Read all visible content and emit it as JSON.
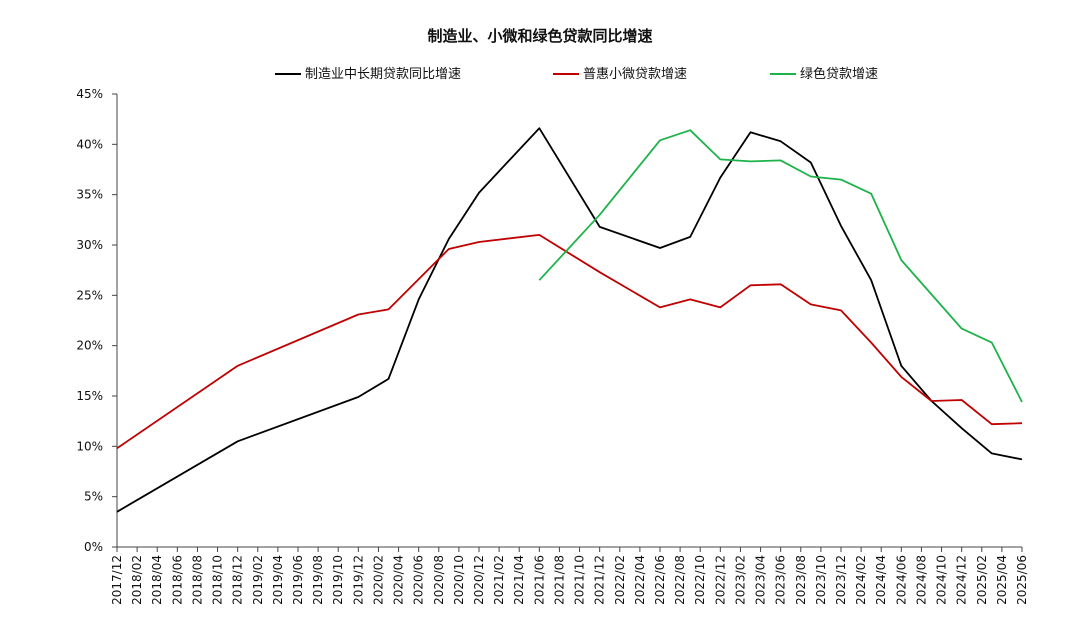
{
  "chart_data": {
    "type": "line",
    "title": "制造业、小微和绿色贷款同比增速",
    "xlabel": "",
    "ylabel": "",
    "ylim": [
      0,
      45
    ],
    "yticks": [
      0,
      5,
      10,
      15,
      20,
      25,
      30,
      35,
      40,
      45
    ],
    "ytick_labels": [
      "0%",
      "5%",
      "10%",
      "15%",
      "20%",
      "25%",
      "30%",
      "35%",
      "40%",
      "45%"
    ],
    "legend_position": "top",
    "grid": false,
    "categories": [
      "2017/12",
      "2018/02",
      "2018/04",
      "2018/06",
      "2018/08",
      "2018/10",
      "2018/12",
      "2019/02",
      "2019/04",
      "2019/06",
      "2019/08",
      "2019/10",
      "2019/12",
      "2020/02",
      "2020/04",
      "2020/06",
      "2020/08",
      "2020/10",
      "2020/12",
      "2021/02",
      "2021/04",
      "2021/06",
      "2021/08",
      "2021/10",
      "2021/12",
      "2022/02",
      "2022/04",
      "2022/06",
      "2022/08",
      "2022/10",
      "2022/12",
      "2023/02",
      "2023/04",
      "2023/06",
      "2023/08",
      "2023/10",
      "2023/12",
      "2024/02",
      "2024/04",
      "2024/06",
      "2024/08",
      "2024/10",
      "2024/12",
      "2025/02",
      "2025/04",
      "2025/06"
    ],
    "series": [
      {
        "name": "制造业中长期贷款同比增速",
        "color": "#000000",
        "points": [
          [
            "2017/12",
            3.5
          ],
          [
            "2018/12",
            10.5
          ],
          [
            "2019/12",
            14.9
          ],
          [
            "2020/03",
            16.7
          ],
          [
            "2020/06",
            24.6
          ],
          [
            "2020/09",
            30.6
          ],
          [
            "2020/12",
            35.2
          ],
          [
            "2021/06",
            41.6
          ],
          [
            "2021/12",
            31.8
          ],
          [
            "2022/06",
            29.7
          ],
          [
            "2022/09",
            30.8
          ],
          [
            "2022/12",
            36.7
          ],
          [
            "2023/03",
            41.2
          ],
          [
            "2023/06",
            40.3
          ],
          [
            "2023/09",
            38.2
          ],
          [
            "2023/12",
            31.9
          ],
          [
            "2024/03",
            26.5
          ],
          [
            "2024/06",
            18.0
          ],
          [
            "2024/09",
            14.5
          ],
          [
            "2024/12",
            11.8
          ],
          [
            "2025/03",
            9.3
          ],
          [
            "2025/06",
            8.7
          ]
        ]
      },
      {
        "name": "普惠小微贷款增速",
        "color": "#c00000",
        "points": [
          [
            "2017/12",
            9.8
          ],
          [
            "2018/12",
            18.0
          ],
          [
            "2019/12",
            23.1
          ],
          [
            "2020/03",
            23.6
          ],
          [
            "2020/09",
            29.6
          ],
          [
            "2020/12",
            30.3
          ],
          [
            "2021/06",
            31.0
          ],
          [
            "2021/12",
            27.3
          ],
          [
            "2022/06",
            23.8
          ],
          [
            "2022/09",
            24.6
          ],
          [
            "2022/12",
            23.8
          ],
          [
            "2023/03",
            26.0
          ],
          [
            "2023/06",
            26.1
          ],
          [
            "2023/09",
            24.1
          ],
          [
            "2023/12",
            23.5
          ],
          [
            "2024/03",
            20.3
          ],
          [
            "2024/06",
            16.9
          ],
          [
            "2024/09",
            14.5
          ],
          [
            "2024/12",
            14.6
          ],
          [
            "2025/03",
            12.2
          ],
          [
            "2025/06",
            12.3
          ]
        ]
      },
      {
        "name": "绿色贷款增速",
        "color": "#1db34a",
        "points": [
          [
            "2021/06",
            26.5
          ],
          [
            "2021/12",
            33.0
          ],
          [
            "2022/06",
            40.4
          ],
          [
            "2022/09",
            41.4
          ],
          [
            "2022/12",
            38.5
          ],
          [
            "2023/03",
            38.3
          ],
          [
            "2023/06",
            38.4
          ],
          [
            "2023/09",
            36.8
          ],
          [
            "2023/12",
            36.5
          ],
          [
            "2024/03",
            35.1
          ],
          [
            "2024/06",
            28.5
          ],
          [
            "2024/12",
            21.7
          ],
          [
            "2025/03",
            20.3
          ],
          [
            "2025/06",
            14.4
          ]
        ]
      }
    ]
  }
}
